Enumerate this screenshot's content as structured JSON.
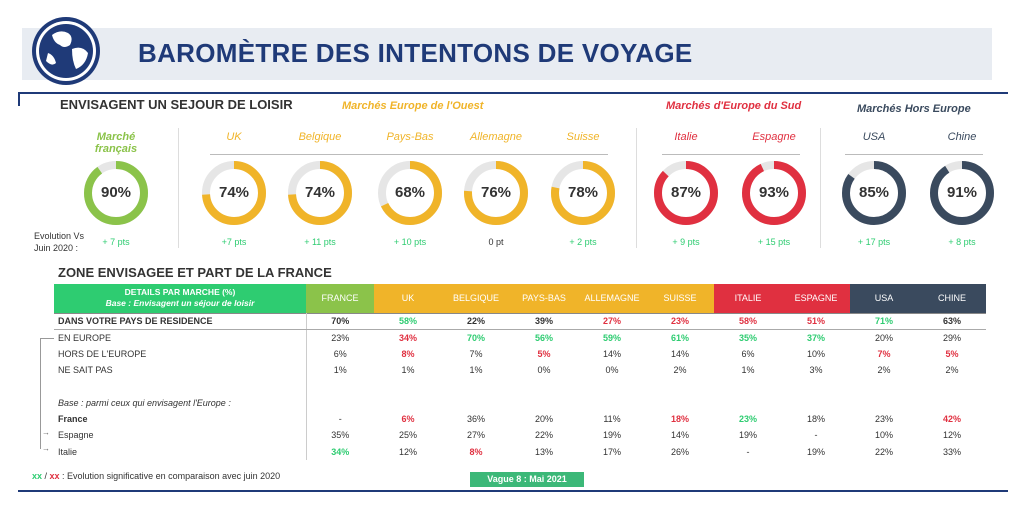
{
  "title": "BAROMÈTRE DES INTENTONS DE VOYAGE",
  "section1": "ENVISAGENT UN SEJOUR DE LOISIR",
  "section2": "ZONE ENVISAGEE ET PART DE LA FRANCE",
  "groups": {
    "west": "Marchés Europe de l'Ouest",
    "south": "Marchés d'Europe du Sud",
    "outside": "Marchés Hors Europe"
  },
  "evo_label_line1": "Evolution Vs",
  "evo_label_line2": "Juin 2020 :",
  "colors": {
    "green": "#8bc34a",
    "yellow": "#f0b429",
    "red": "#e03040",
    "navy": "#3a4a5e",
    "title": "#1f3a78"
  },
  "chart_data": [
    {
      "type": "donut",
      "markets": [
        {
          "label": "Marché français",
          "value": 90,
          "evo": "+ 7 pts",
          "color": "green"
        },
        {
          "label": "UK",
          "value": 74,
          "evo": "+7 pts",
          "color": "yellow"
        },
        {
          "label": "Belgique",
          "value": 74,
          "evo": "+ 11 pts",
          "color": "yellow"
        },
        {
          "label": "Pays-Bas",
          "value": 68,
          "evo": "+ 10 pts",
          "color": "yellow"
        },
        {
          "label": "Allemagne",
          "value": 76,
          "evo": "0 pt",
          "color": "yellow"
        },
        {
          "label": "Suisse",
          "value": 78,
          "evo": "+ 2 pts",
          "color": "yellow"
        },
        {
          "label": "Italie",
          "value": 87,
          "evo": "+ 9 pts",
          "color": "red"
        },
        {
          "label": "Espagne",
          "value": 93,
          "evo": "+ 15 pts",
          "color": "red"
        },
        {
          "label": "USA",
          "value": 85,
          "evo": "+ 17 pts",
          "color": "navy"
        },
        {
          "label": "Chine",
          "value": 91,
          "evo": "+ 8 pts",
          "color": "navy"
        }
      ]
    },
    {
      "type": "table",
      "header_title": "DETAILS PAR MARCHE (%)",
      "header_sub": "Base : Envisagent un séjour de loisir",
      "columns": [
        {
          "label": "FRANCE",
          "bg": "#8bc34a"
        },
        {
          "label": "UK",
          "bg": "#f0b429"
        },
        {
          "label": "BELGIQUE",
          "bg": "#f0b429"
        },
        {
          "label": "PAYS-BAS",
          "bg": "#f0b429"
        },
        {
          "label": "ALLEMAGNE",
          "bg": "#f0b429"
        },
        {
          "label": "SUISSE",
          "bg": "#f0b429"
        },
        {
          "label": "ITALIE",
          "bg": "#e03040"
        },
        {
          "label": "ESPAGNE",
          "bg": "#e03040"
        },
        {
          "label": "USA",
          "bg": "#3a4a5e"
        },
        {
          "label": "CHINE",
          "bg": "#3a4a5e"
        }
      ],
      "rows": [
        {
          "label": "DANS VOTRE PAYS DE RESIDENCE",
          "cls": "first",
          "cells": [
            [
              "70%",
              ""
            ],
            [
              "58%",
              "green"
            ],
            [
              "22%",
              ""
            ],
            [
              "39%",
              ""
            ],
            [
              "27%",
              "red"
            ],
            [
              "23%",
              "red"
            ],
            [
              "58%",
              "red"
            ],
            [
              "51%",
              "red"
            ],
            [
              "71%",
              "green"
            ],
            [
              "63%",
              ""
            ]
          ]
        },
        {
          "label": "EN EUROPE",
          "cells": [
            [
              "23%",
              ""
            ],
            [
              "34%",
              "red"
            ],
            [
              "70%",
              "green"
            ],
            [
              "56%",
              "green"
            ],
            [
              "59%",
              "green"
            ],
            [
              "61%",
              "green"
            ],
            [
              "35%",
              "green"
            ],
            [
              "37%",
              "green"
            ],
            [
              "20%",
              ""
            ],
            [
              "29%",
              ""
            ]
          ]
        },
        {
          "label": "HORS DE L'EUROPE",
          "cells": [
            [
              "6%",
              ""
            ],
            [
              "8%",
              "red"
            ],
            [
              "7%",
              ""
            ],
            [
              "5%",
              "red"
            ],
            [
              "14%",
              ""
            ],
            [
              "14%",
              ""
            ],
            [
              "6%",
              ""
            ],
            [
              "10%",
              ""
            ],
            [
              "7%",
              "red"
            ],
            [
              "5%",
              "red"
            ]
          ]
        },
        {
          "label": "NE SAIT PAS",
          "cells": [
            [
              "1%",
              ""
            ],
            [
              "1%",
              ""
            ],
            [
              "1%",
              ""
            ],
            [
              "0%",
              ""
            ],
            [
              "0%",
              ""
            ],
            [
              "2%",
              ""
            ],
            [
              "1%",
              ""
            ],
            [
              "3%",
              ""
            ],
            [
              "2%",
              ""
            ],
            [
              "2%",
              ""
            ]
          ]
        },
        {
          "label": "",
          "cells": [
            [
              "",
              ""
            ],
            [
              "",
              ""
            ],
            [
              "",
              ""
            ],
            [
              "",
              ""
            ],
            [
              "",
              ""
            ],
            [
              "",
              ""
            ],
            [
              "",
              ""
            ],
            [
              "",
              ""
            ],
            [
              "",
              ""
            ],
            [
              "",
              ""
            ]
          ]
        },
        {
          "label": "Base : parmi ceux qui envisagent l'Europe :",
          "cls": "base",
          "cells": [
            [
              "",
              ""
            ],
            [
              "",
              ""
            ],
            [
              "",
              ""
            ],
            [
              "",
              ""
            ],
            [
              "",
              ""
            ],
            [
              "",
              ""
            ],
            [
              "",
              ""
            ],
            [
              "",
              ""
            ],
            [
              "",
              ""
            ],
            [
              "",
              ""
            ]
          ]
        },
        {
          "label": "France",
          "cls": "bold",
          "cells": [
            [
              "-",
              ""
            ],
            [
              "6%",
              "red"
            ],
            [
              "36%",
              ""
            ],
            [
              "20%",
              ""
            ],
            [
              "11%",
              ""
            ],
            [
              "18%",
              "red"
            ],
            [
              "23%",
              "green"
            ],
            [
              "18%",
              ""
            ],
            [
              "23%",
              ""
            ],
            [
              "42%",
              "red"
            ]
          ]
        },
        {
          "label": "Espagne",
          "cells": [
            [
              "35%",
              ""
            ],
            [
              "25%",
              ""
            ],
            [
              "27%",
              ""
            ],
            [
              "22%",
              ""
            ],
            [
              "19%",
              ""
            ],
            [
              "14%",
              ""
            ],
            [
              "19%",
              ""
            ],
            [
              "-",
              ""
            ],
            [
              "10%",
              ""
            ],
            [
              "12%",
              ""
            ]
          ]
        },
        {
          "label": "Italie",
          "cells": [
            [
              "34%",
              "green"
            ],
            [
              "12%",
              ""
            ],
            [
              "8%",
              "red"
            ],
            [
              "13%",
              ""
            ],
            [
              "17%",
              ""
            ],
            [
              "26%",
              ""
            ],
            [
              "-",
              ""
            ],
            [
              "19%",
              ""
            ],
            [
              "22%",
              ""
            ],
            [
              "33%",
              ""
            ]
          ]
        }
      ]
    }
  ],
  "legend_xx1": "xx",
  "legend_slash": " / ",
  "legend_xx2": "xx",
  "legend_text": " : Evolution significative en comparaison avec juin 2020",
  "wave": "Vague 8 : Mai 2021"
}
